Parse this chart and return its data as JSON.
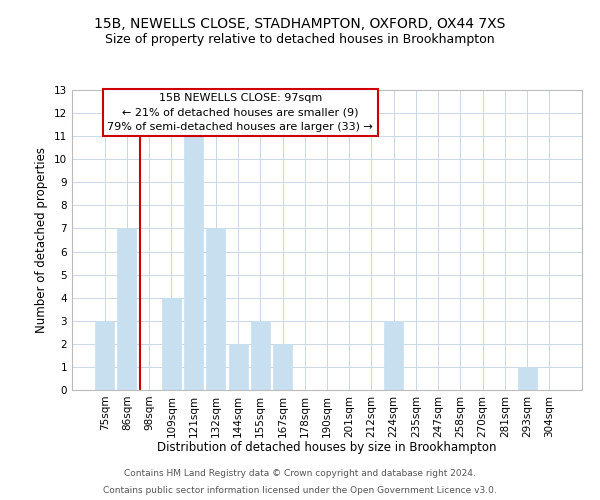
{
  "title": "15B, NEWELLS CLOSE, STADHAMPTON, OXFORD, OX44 7XS",
  "subtitle": "Size of property relative to detached houses in Brookhampton",
  "xlabel": "Distribution of detached houses by size in Brookhampton",
  "ylabel": "Number of detached properties",
  "bin_labels": [
    "75sqm",
    "86sqm",
    "98sqm",
    "109sqm",
    "121sqm",
    "132sqm",
    "144sqm",
    "155sqm",
    "167sqm",
    "178sqm",
    "190sqm",
    "201sqm",
    "212sqm",
    "224sqm",
    "235sqm",
    "247sqm",
    "258sqm",
    "270sqm",
    "281sqm",
    "293sqm",
    "304sqm"
  ],
  "bar_heights": [
    3,
    7,
    0,
    4,
    11,
    7,
    2,
    3,
    2,
    0,
    0,
    0,
    0,
    3,
    0,
    0,
    0,
    0,
    0,
    1,
    0
  ],
  "bar_color": "#c8dff0",
  "bar_edge_color": "#c8dff0",
  "vline_x_index": 2,
  "vline_color": "#cc0000",
  "ylim": [
    0,
    13
  ],
  "yticks": [
    0,
    1,
    2,
    3,
    4,
    5,
    6,
    7,
    8,
    9,
    10,
    11,
    12,
    13
  ],
  "annotation_title": "15B NEWELLS CLOSE: 97sqm",
  "annotation_line1": "← 21% of detached houses are smaller (9)",
  "annotation_line2": "79% of semi-detached houses are larger (33) →",
  "annotation_box_color": "#ffffff",
  "annotation_box_edgecolor": "#cc0000",
  "footer1": "Contains HM Land Registry data © Crown copyright and database right 2024.",
  "footer2": "Contains public sector information licensed under the Open Government Licence v3.0.",
  "background_color": "#ffffff",
  "grid_color": "#c8d8e8",
  "title_fontsize": 10,
  "subtitle_fontsize": 9,
  "axis_label_fontsize": 8.5,
  "tick_fontsize": 7.5,
  "footer_fontsize": 6.5,
  "annotation_fontsize": 8
}
